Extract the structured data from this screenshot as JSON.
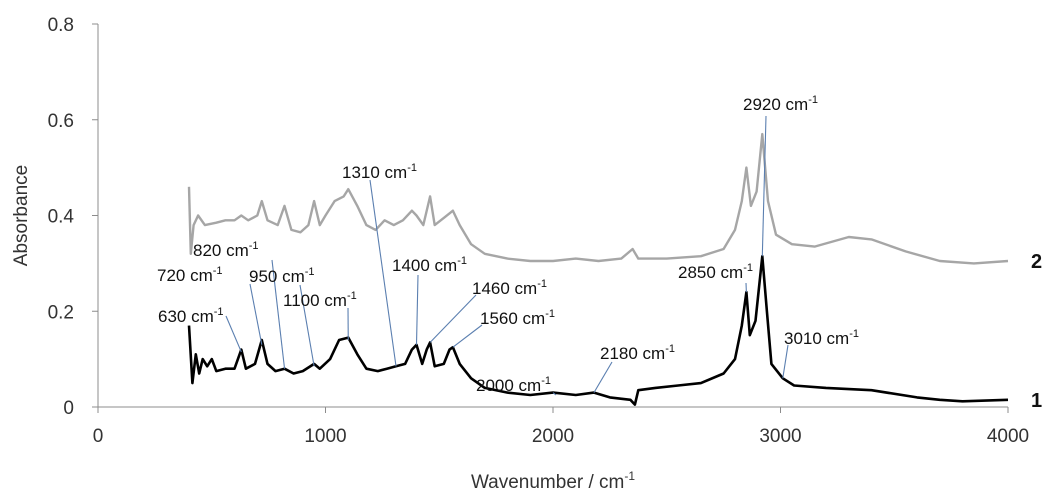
{
  "chart_data": {
    "type": "line",
    "title": "",
    "xlabel": "Wavenumber / cm",
    "xlabel_sup": "-1",
    "ylabel": "Absorbance",
    "xlim": [
      0,
      4000
    ],
    "ylim": [
      0,
      0.8
    ],
    "x_ticks": [
      "0",
      "1000",
      "2000",
      "3000",
      "4000"
    ],
    "y_ticks": [
      "0",
      "0.2",
      "0.4",
      "0.6",
      "0.8"
    ],
    "grid": false,
    "series": [
      {
        "name": "1",
        "color": "#000000",
        "points": [
          [
            400,
            0.17
          ],
          [
            415,
            0.05
          ],
          [
            430,
            0.11
          ],
          [
            445,
            0.07
          ],
          [
            460,
            0.1
          ],
          [
            480,
            0.085
          ],
          [
            500,
            0.1
          ],
          [
            520,
            0.075
          ],
          [
            560,
            0.08
          ],
          [
            600,
            0.08
          ],
          [
            630,
            0.12
          ],
          [
            650,
            0.08
          ],
          [
            690,
            0.09
          ],
          [
            720,
            0.14
          ],
          [
            745,
            0.09
          ],
          [
            780,
            0.075
          ],
          [
            820,
            0.08
          ],
          [
            860,
            0.07
          ],
          [
            900,
            0.075
          ],
          [
            950,
            0.09
          ],
          [
            975,
            0.08
          ],
          [
            1020,
            0.1
          ],
          [
            1060,
            0.14
          ],
          [
            1100,
            0.145
          ],
          [
            1140,
            0.11
          ],
          [
            1180,
            0.08
          ],
          [
            1230,
            0.075
          ],
          [
            1270,
            0.08
          ],
          [
            1310,
            0.085
          ],
          [
            1350,
            0.09
          ],
          [
            1380,
            0.12
          ],
          [
            1400,
            0.13
          ],
          [
            1425,
            0.09
          ],
          [
            1445,
            0.12
          ],
          [
            1460,
            0.135
          ],
          [
            1480,
            0.085
          ],
          [
            1520,
            0.09
          ],
          [
            1545,
            0.12
          ],
          [
            1560,
            0.125
          ],
          [
            1590,
            0.09
          ],
          [
            1640,
            0.06
          ],
          [
            1700,
            0.04
          ],
          [
            1800,
            0.03
          ],
          [
            1900,
            0.025
          ],
          [
            2000,
            0.03
          ],
          [
            2100,
            0.025
          ],
          [
            2180,
            0.03
          ],
          [
            2250,
            0.02
          ],
          [
            2340,
            0.015
          ],
          [
            2360,
            0.005
          ],
          [
            2375,
            0.035
          ],
          [
            2450,
            0.04
          ],
          [
            2550,
            0.045
          ],
          [
            2650,
            0.05
          ],
          [
            2750,
            0.07
          ],
          [
            2800,
            0.1
          ],
          [
            2830,
            0.17
          ],
          [
            2850,
            0.24
          ],
          [
            2865,
            0.15
          ],
          [
            2890,
            0.18
          ],
          [
            2920,
            0.315
          ],
          [
            2940,
            0.2
          ],
          [
            2960,
            0.09
          ],
          [
            3010,
            0.06
          ],
          [
            3060,
            0.045
          ],
          [
            3200,
            0.04
          ],
          [
            3400,
            0.035
          ],
          [
            3600,
            0.02
          ],
          [
            3700,
            0.015
          ],
          [
            3800,
            0.012
          ],
          [
            4000,
            0.015
          ]
        ]
      },
      {
        "name": "2",
        "color": "#a6a6a6",
        "points": [
          [
            400,
            0.46
          ],
          [
            408,
            0.32
          ],
          [
            420,
            0.38
          ],
          [
            440,
            0.4
          ],
          [
            470,
            0.38
          ],
          [
            520,
            0.385
          ],
          [
            560,
            0.39
          ],
          [
            600,
            0.39
          ],
          [
            630,
            0.4
          ],
          [
            660,
            0.39
          ],
          [
            700,
            0.4
          ],
          [
            720,
            0.43
          ],
          [
            745,
            0.39
          ],
          [
            790,
            0.38
          ],
          [
            820,
            0.42
          ],
          [
            850,
            0.37
          ],
          [
            890,
            0.365
          ],
          [
            925,
            0.38
          ],
          [
            950,
            0.43
          ],
          [
            975,
            0.38
          ],
          [
            1000,
            0.4
          ],
          [
            1040,
            0.43
          ],
          [
            1080,
            0.44
          ],
          [
            1100,
            0.455
          ],
          [
            1140,
            0.42
          ],
          [
            1180,
            0.38
          ],
          [
            1220,
            0.37
          ],
          [
            1260,
            0.39
          ],
          [
            1300,
            0.38
          ],
          [
            1340,
            0.39
          ],
          [
            1380,
            0.41
          ],
          [
            1400,
            0.4
          ],
          [
            1430,
            0.38
          ],
          [
            1460,
            0.44
          ],
          [
            1480,
            0.38
          ],
          [
            1520,
            0.395
          ],
          [
            1560,
            0.41
          ],
          [
            1590,
            0.38
          ],
          [
            1640,
            0.34
          ],
          [
            1700,
            0.32
          ],
          [
            1800,
            0.31
          ],
          [
            1900,
            0.305
          ],
          [
            2000,
            0.305
          ],
          [
            2100,
            0.31
          ],
          [
            2200,
            0.305
          ],
          [
            2300,
            0.31
          ],
          [
            2350,
            0.33
          ],
          [
            2375,
            0.31
          ],
          [
            2500,
            0.31
          ],
          [
            2650,
            0.315
          ],
          [
            2750,
            0.33
          ],
          [
            2800,
            0.37
          ],
          [
            2830,
            0.43
          ],
          [
            2850,
            0.5
          ],
          [
            2870,
            0.42
          ],
          [
            2895,
            0.45
          ],
          [
            2920,
            0.57
          ],
          [
            2945,
            0.43
          ],
          [
            2980,
            0.36
          ],
          [
            3050,
            0.34
          ],
          [
            3150,
            0.335
          ],
          [
            3300,
            0.355
          ],
          [
            3400,
            0.35
          ],
          [
            3550,
            0.325
          ],
          [
            3700,
            0.305
          ],
          [
            3850,
            0.3
          ],
          [
            4000,
            0.305
          ]
        ]
      }
    ],
    "annotations": [
      {
        "base": "630 cm",
        "sup": "-1"
      },
      {
        "base": "720 cm",
        "sup": "-1"
      },
      {
        "base": "820 cm",
        "sup": "-1"
      },
      {
        "base": "950 cm",
        "sup": "-1"
      },
      {
        "base": "1100 cm",
        "sup": "-1"
      },
      {
        "base": "1310 cm",
        "sup": "-1"
      },
      {
        "base": "1400 cm",
        "sup": "-1"
      },
      {
        "base": "1460 cm",
        "sup": "-1"
      },
      {
        "base": "1560 cm",
        "sup": "-1"
      },
      {
        "base": "2000 cm",
        "sup": "-1"
      },
      {
        "base": "2180 cm",
        "sup": "-1"
      },
      {
        "base": "2850 cm",
        "sup": "-1"
      },
      {
        "base": "2920 cm",
        "sup": "-1"
      },
      {
        "base": "3010 cm",
        "sup": "-1"
      }
    ]
  }
}
